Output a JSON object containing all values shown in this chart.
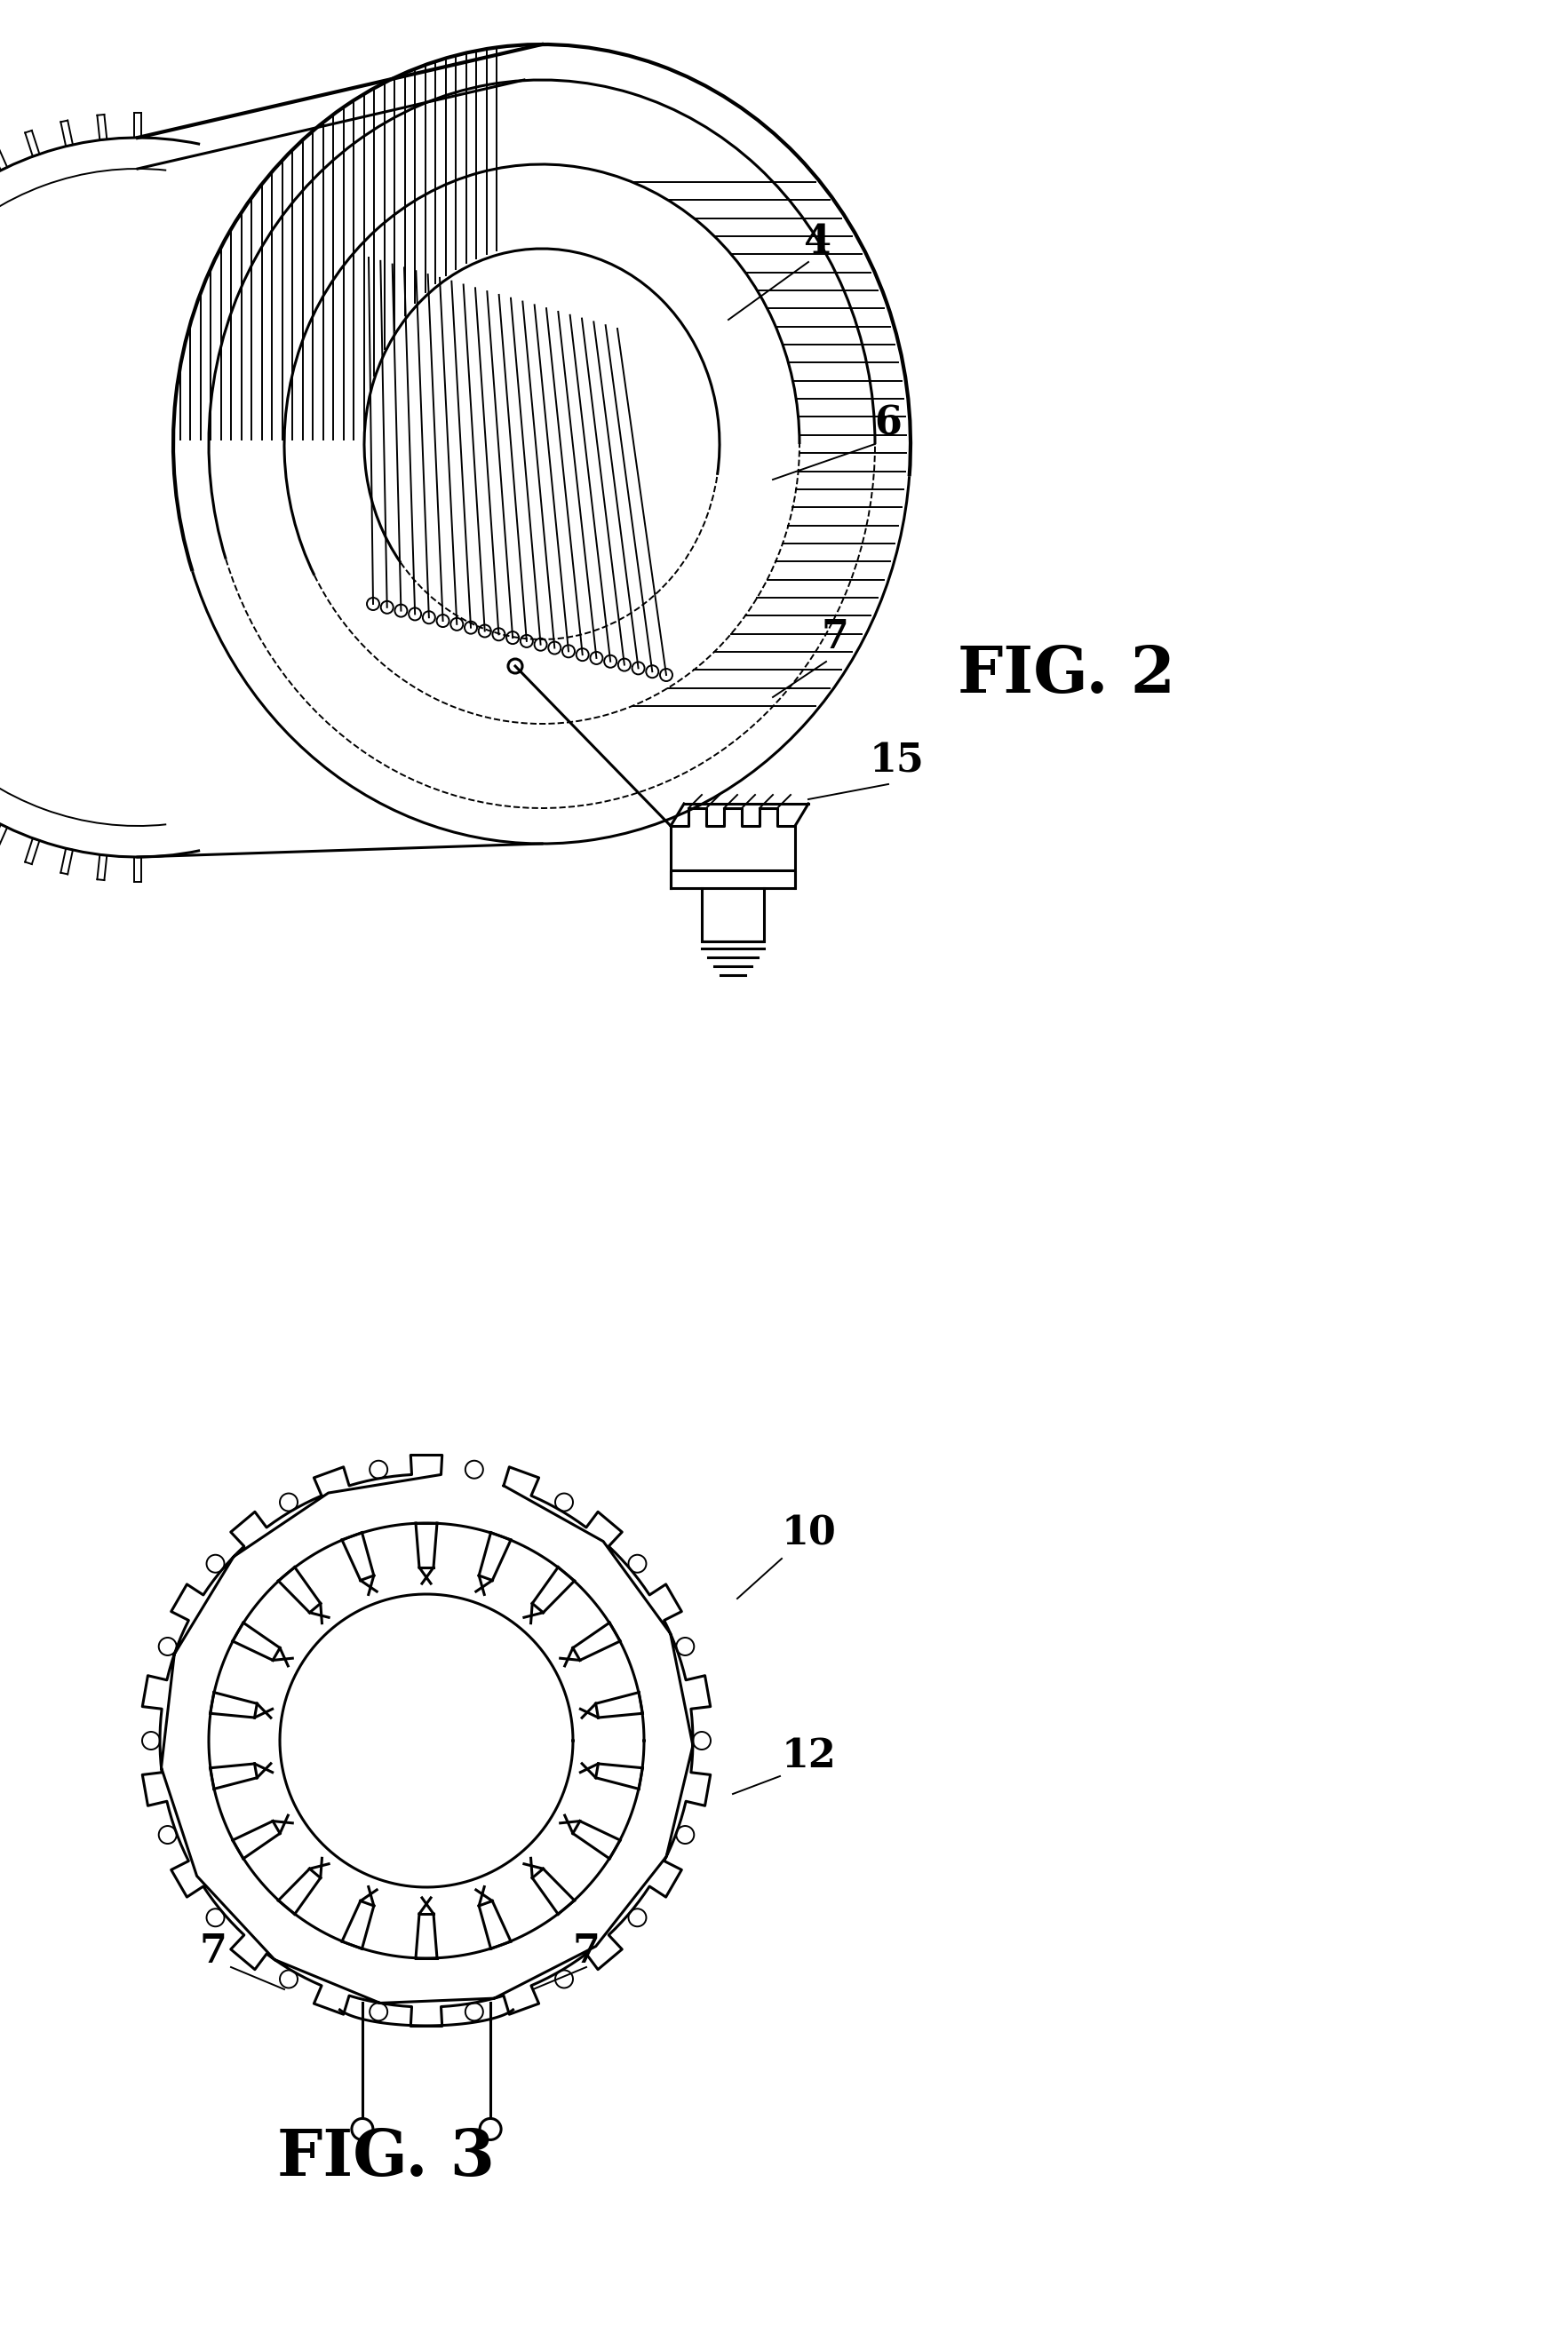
{
  "fig_width": 17.64,
  "fig_height": 26.45,
  "bg_color": "#ffffff",
  "line_color": "#000000",
  "fig2_label": "FIG. 2",
  "fig3_label": "FIG. 3",
  "label_4": "4",
  "label_6": "6",
  "label_7": "7",
  "label_7b": "7",
  "label_10": "10",
  "label_12": "12",
  "label_15": "15",
  "num_stator_slots": 18,
  "num_outer_notches": 18,
  "lw": 2.2,
  "lw_thin": 1.4,
  "lw_thick": 3.0
}
